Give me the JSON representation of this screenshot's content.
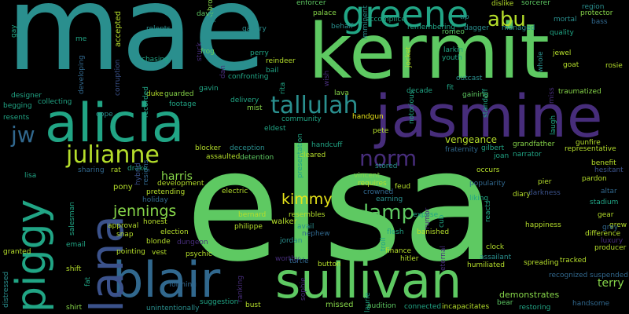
{
  "background": "#000000",
  "palette": {
    "teal": "#2a8f8e",
    "green": "#5ec962",
    "lime": "#b5de2b",
    "purple": "#472d7b",
    "indigo": "#3b528b",
    "blue": "#31688e",
    "sea": "#21a585",
    "mint": "#86d549",
    "yellow": "#e7e419"
  },
  "words": {
    "w1": "mae",
    "w2": "elsa",
    "w3": "kermit",
    "w4": "jasmine",
    "w5": "alicia",
    "w6": "sullivan",
    "w7": "blair",
    "w8": "lana",
    "w9": "piggy",
    "w10": "greene",
    "w11": "tallulah",
    "w12": "julianne",
    "w13": "abu",
    "w14": "jw",
    "w15": "norm",
    "w16": "lamp",
    "w17": "jennings",
    "w18": "kimmy",
    "w19": "terry",
    "w20": "harris",
    "w21": "vengeance",
    "w22": "demonstrates",
    "w23": "enforcer",
    "w24": "sorcerer",
    "w25": "region",
    "w26": "protector",
    "w27": "bass",
    "w28": "palace",
    "w29": "tip",
    "w30": "romeo",
    "w31": "dagger",
    "w32": "managed",
    "w33": "behalf",
    "w34": "accomplice",
    "w35": "remembering",
    "w36": "mortal",
    "w37": "dislike",
    "w38": "quality",
    "w39": "jewel",
    "w40": "goat",
    "w41": "rosie",
    "w42": "larkin",
    "w43": "youth",
    "w44": "gallery",
    "w45": "julia",
    "w46": "brown",
    "w47": "davy",
    "w48": "frog",
    "w49": "perry",
    "w50": "reindeer",
    "w51": "bail",
    "w52": "confronting",
    "w53": "chasing",
    "w54": "relents",
    "w55": "stuck",
    "w56": "duke",
    "w57": "guarded",
    "w58": "footage",
    "w59": "recorded",
    "w60": "delivery",
    "w61": "mist",
    "w62": "lava",
    "w63": "handgun",
    "w64": "outcast",
    "w65": "fit",
    "w66": "gaining",
    "w67": "decade",
    "w68": "standoff",
    "w69": "traumatized",
    "w70": "gunfire",
    "w71": "representative",
    "w72": "grandfather",
    "w73": "narrator",
    "w74": "benefit",
    "w75": "hesitant",
    "w76": "pardon",
    "w77": "altar",
    "w78": "stadium",
    "w79": "gear",
    "w80": "grew",
    "w81": "difference",
    "w82": "producer",
    "w83": "luxury",
    "w84": "suspended",
    "w85": "handsome",
    "w86": "restoring",
    "w87": "bear",
    "w88": "incapacitates",
    "w89": "connected",
    "w90": "audition",
    "w91": "missed",
    "w92": "bust",
    "w93": "suggestion",
    "w94": "unintentionally",
    "w95": "shirt",
    "w96": "forming",
    "w97": "psychic",
    "w98": "election",
    "w99": "blonde",
    "w100": "pointing",
    "w101": "dungeon",
    "w102": "honest",
    "w103": "approval",
    "w104": "snap",
    "w105": "holiday",
    "w106": "pretending",
    "w107": "development",
    "w108": "pony",
    "w109": "rat",
    "w110": "drake",
    "w111": "sharing",
    "w112": "lisa",
    "w113": "blocker",
    "w114": "assaulted",
    "w115": "deception",
    "w116": "detention",
    "w117": "cleared",
    "w118": "electric",
    "w119": "bernard",
    "w120": "philippe",
    "w121": "walker",
    "w122": "avail",
    "w123": "resembles",
    "w124": "nephew",
    "w125": "jordan",
    "w126": "vincent",
    "w127": "crowned",
    "w128": "earning",
    "w129": "requires",
    "w130": "feud",
    "w131": "finance",
    "w132": "stored",
    "w133": "flesh",
    "w134": "banished",
    "w135": "expose",
    "w136": "popularity",
    "w137": "liking",
    "w138": "diary",
    "w139": "occurs",
    "w140": "pier",
    "w141": "darkness",
    "w142": "reacts",
    "w143": "happiness",
    "w144": "clock",
    "w145": "assailant",
    "w146": "humiliated",
    "w147": "spreading",
    "w148": "tracked",
    "w149": "recognized",
    "w150": "eternal",
    "w151": "hitler",
    "w152": "button",
    "w153": "worthy",
    "w154": "turtle",
    "w155": "community",
    "w156": "eldest",
    "w157": "pete",
    "w158": "fraternity",
    "w159": "gilbert",
    "w160": "joan",
    "w161": "handcuff",
    "w162": "presentation",
    "w163": "gavin",
    "w164": "dan",
    "w165": "cope",
    "w166": "collecting",
    "w167": "designer",
    "w168": "begging",
    "w169": "resents",
    "w170": "email",
    "w171": "granted",
    "w172": "shift",
    "w173": "distressed",
    "w174": "salesman",
    "w175": "fat",
    "w176": "accepted",
    "w177": "corruption",
    "w178": "developing",
    "w179": "gay",
    "w180": "me",
    "w181": "jocket",
    "w182": "wish",
    "w183": "imminent",
    "w184": "notorious",
    "w185": "laugh",
    "w186": "cub",
    "w187": "troll",
    "w188": "laurie",
    "w189": "rumor",
    "w190": "rita",
    "w191": "sophie",
    "w192": "ranking",
    "w193": "grey",
    "w194": "hybrid",
    "w195": "resigns",
    "w196": "whole",
    "w197": "miss",
    "w198": "vest"
  }
}
